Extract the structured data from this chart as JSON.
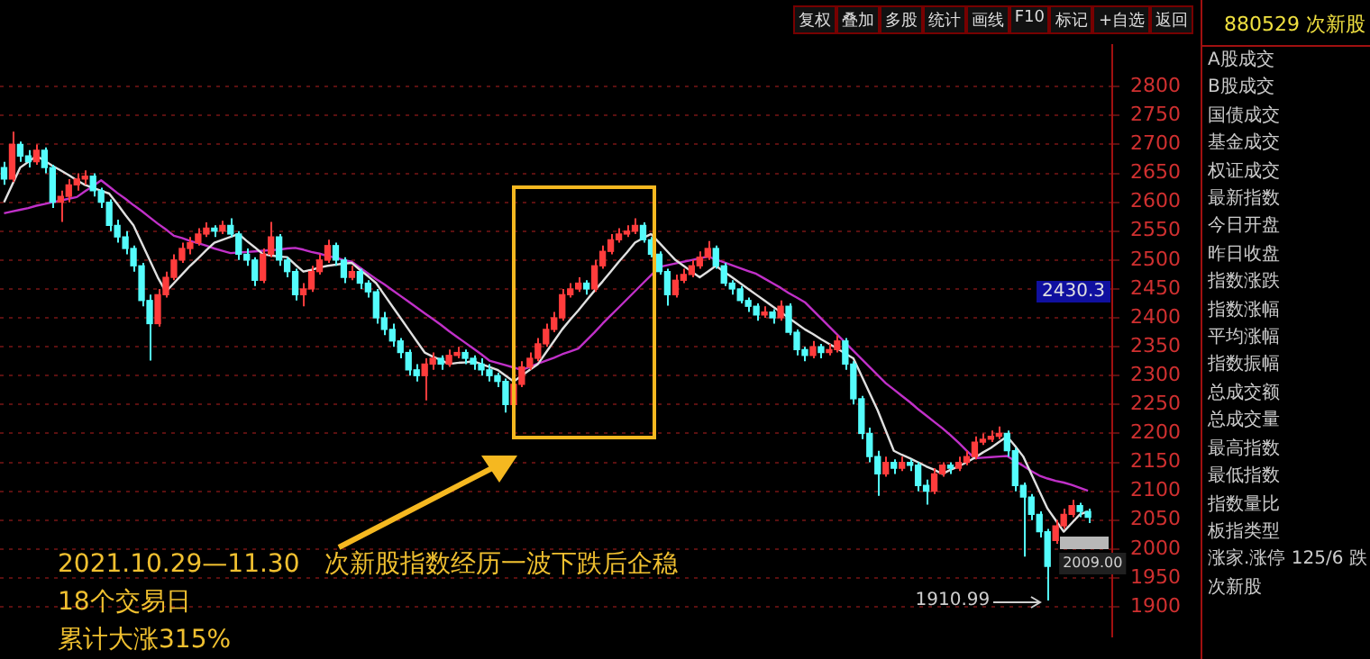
{
  "chart_data": [
    {
      "type": "candlestick",
      "categories": [
        null,
        null,
        null,
        null,
        null,
        null,
        null,
        null,
        null,
        null,
        null,
        null,
        null,
        null,
        null,
        null,
        null,
        null,
        null,
        null,
        null,
        null,
        null,
        null,
        null,
        null,
        null,
        null,
        null,
        null,
        null,
        null,
        null,
        null,
        null,
        null,
        null,
        null,
        null,
        null,
        null,
        null,
        null,
        null,
        null,
        null,
        null,
        null,
        null,
        null,
        null,
        null,
        null,
        null,
        null,
        null,
        null,
        null,
        null,
        null,
        null,
        null,
        null,
        null,
        null,
        null,
        null,
        null,
        null,
        null,
        null,
        null,
        null,
        null,
        null,
        null,
        null,
        null,
        null,
        null,
        null,
        null,
        null,
        null,
        null,
        null,
        null,
        null,
        null,
        null,
        null,
        null,
        null,
        null,
        null,
        null,
        null,
        null,
        null,
        null,
        null,
        null,
        null,
        null,
        null,
        null,
        null,
        null,
        null,
        null,
        null,
        null,
        null,
        null,
        null,
        null,
        null,
        null,
        null,
        null,
        null,
        null,
        null,
        null,
        null,
        null,
        null,
        null,
        null,
        null,
        null,
        null,
        null,
        null,
        null
      ],
      "ylim": [
        1849,
        2872
      ],
      "yticks": [
        1900,
        1950,
        2000,
        2050,
        2100,
        2150,
        2200,
        2250,
        2300,
        2350,
        2400,
        2450,
        2500,
        2550,
        2600,
        2650,
        2700,
        2750,
        2800
      ],
      "grid": "y",
      "tick_labels": "y",
      "marker": "none",
      "annotations": [
        "2021.10.29—11.30　次新股指数经历一波下跌后企稳",
        "18个交易日",
        "累计大涨315%",
        "1910.99",
        "2009.00",
        "2430.3"
      ],
      "series": [
        {
          "type": "candlestick",
          "ohlc": [
            [
              2660,
              2670,
              2630,
              2640
            ],
            [
              2640,
              2722,
              2635,
              2700
            ],
            [
              2700,
              2705,
              2670,
              2680
            ],
            [
              2680,
              2690,
              2660,
              2670
            ],
            [
              2670,
              2700,
              2665,
              2690
            ],
            [
              2690,
              2695,
              2650,
              2660
            ],
            [
              2660,
              2665,
              2590,
              2600
            ],
            [
              2600,
              2620,
              2566,
              2610
            ],
            [
              2610,
              2640,
              2600,
              2630
            ],
            [
              2630,
              2650,
              2620,
              2640
            ],
            [
              2640,
              2655,
              2630,
              2645
            ],
            [
              2645,
              2650,
              2610,
              2620
            ],
            [
              2620,
              2625,
              2590,
              2600
            ],
            [
              2600,
              2605,
              2550,
              2560
            ],
            [
              2560,
              2570,
              2530,
              2540
            ],
            [
              2540,
              2550,
              2510,
              2520
            ],
            [
              2520,
              2525,
              2480,
              2490
            ],
            [
              2490,
              2495,
              2420,
              2430
            ],
            [
              2430,
              2440,
              2326,
              2390
            ],
            [
              2390,
              2450,
              2385,
              2440
            ],
            [
              2440,
              2480,
              2435,
              2470
            ],
            [
              2470,
              2510,
              2465,
              2500
            ],
            [
              2500,
              2530,
              2495,
              2520
            ],
            [
              2520,
              2540,
              2510,
              2530
            ],
            [
              2530,
              2555,
              2525,
              2545
            ],
            [
              2545,
              2565,
              2540,
              2555
            ],
            [
              2555,
              2560,
              2540,
              2550
            ],
            [
              2550,
              2568,
              2545,
              2560
            ],
            [
              2560,
              2572,
              2540,
              2545
            ],
            [
              2545,
              2550,
              2500,
              2510
            ],
            [
              2510,
              2520,
              2490,
              2500
            ],
            [
              2500,
              2505,
              2455,
              2465
            ],
            [
              2465,
              2520,
              2460,
              2510
            ],
            [
              2510,
              2566,
              2505,
              2540
            ],
            [
              2540,
              2545,
              2490,
              2500
            ],
            [
              2500,
              2505,
              2470,
              2480
            ],
            [
              2480,
              2485,
              2430,
              2440
            ],
            [
              2440,
              2460,
              2420,
              2450
            ],
            [
              2450,
              2490,
              2445,
              2480
            ],
            [
              2480,
              2510,
              2475,
              2500
            ],
            [
              2500,
              2535,
              2495,
              2525
            ],
            [
              2525,
              2530,
              2490,
              2500
            ],
            [
              2500,
              2505,
              2460,
              2470
            ],
            [
              2470,
              2490,
              2465,
              2480
            ],
            [
              2480,
              2485,
              2450,
              2460
            ],
            [
              2460,
              2465,
              2435,
              2445
            ],
            [
              2445,
              2450,
              2390,
              2400
            ],
            [
              2400,
              2410,
              2370,
              2380
            ],
            [
              2380,
              2390,
              2350,
              2360
            ],
            [
              2360,
              2365,
              2330,
              2340
            ],
            [
              2340,
              2345,
              2300,
              2310
            ],
            [
              2310,
              2320,
              2290,
              2300
            ],
            [
              2300,
              2330,
              2257,
              2320
            ],
            [
              2320,
              2340,
              2310,
              2330
            ],
            [
              2330,
              2335,
              2310,
              2320
            ],
            [
              2320,
              2345,
              2315,
              2335
            ],
            [
              2335,
              2350,
              2330,
              2340
            ],
            [
              2340,
              2345,
              2320,
              2330
            ],
            [
              2330,
              2335,
              2310,
              2320
            ],
            [
              2320,
              2330,
              2300,
              2310
            ],
            [
              2310,
              2320,
              2290,
              2300
            ],
            [
              2300,
              2305,
              2280,
              2290
            ],
            [
              2290,
              2295,
              2236,
              2250
            ],
            [
              2250,
              2295,
              2245,
              2285
            ],
            [
              2285,
              2325,
              2280,
              2315
            ],
            [
              2315,
              2340,
              2310,
              2330
            ],
            [
              2330,
              2365,
              2325,
              2355
            ],
            [
              2355,
              2390,
              2350,
              2380
            ],
            [
              2380,
              2410,
              2375,
              2400
            ],
            [
              2400,
              2450,
              2395,
              2440
            ],
            [
              2440,
              2460,
              2435,
              2450
            ],
            [
              2450,
              2470,
              2445,
              2460
            ],
            [
              2460,
              2465,
              2440,
              2450
            ],
            [
              2450,
              2500,
              2445,
              2490
            ],
            [
              2490,
              2525,
              2485,
              2515
            ],
            [
              2515,
              2545,
              2510,
              2535
            ],
            [
              2535,
              2555,
              2530,
              2545
            ],
            [
              2545,
              2560,
              2540,
              2550
            ],
            [
              2550,
              2572,
              2545,
              2560
            ],
            [
              2560,
              2565,
              2530,
              2535
            ],
            [
              2535,
              2540,
              2505,
              2510
            ],
            [
              2510,
              2515,
              2475,
              2480
            ],
            [
              2480,
              2485,
              2421,
              2440
            ],
            [
              2440,
              2475,
              2435,
              2465
            ],
            [
              2465,
              2485,
              2460,
              2475
            ],
            [
              2475,
              2500,
              2470,
              2490
            ],
            [
              2490,
              2515,
              2485,
              2505
            ],
            [
              2505,
              2533,
              2500,
              2520
            ],
            [
              2520,
              2525,
              2485,
              2490
            ],
            [
              2490,
              2495,
              2455,
              2460
            ],
            [
              2460,
              2465,
              2440,
              2450
            ],
            [
              2450,
              2455,
              2425,
              2430
            ],
            [
              2430,
              2435,
              2410,
              2420
            ],
            [
              2420,
              2425,
              2395,
              2405
            ],
            [
              2405,
              2420,
              2400,
              2410
            ],
            [
              2410,
              2415,
              2390,
              2400
            ],
            [
              2400,
              2430,
              2395,
              2420
            ],
            [
              2420,
              2425,
              2370,
              2375
            ],
            [
              2375,
              2380,
              2335,
              2345
            ],
            [
              2345,
              2350,
              2325,
              2335
            ],
            [
              2335,
              2360,
              2330,
              2350
            ],
            [
              2350,
              2355,
              2330,
              2340
            ],
            [
              2340,
              2355,
              2335,
              2345
            ],
            [
              2345,
              2370,
              2340,
              2360
            ],
            [
              2360,
              2365,
              2310,
              2320
            ],
            [
              2320,
              2325,
              2250,
              2260
            ],
            [
              2260,
              2265,
              2190,
              2200
            ],
            [
              2200,
              2210,
              2150,
              2160
            ],
            [
              2160,
              2170,
              2092,
              2130
            ],
            [
              2130,
              2160,
              2125,
              2150
            ],
            [
              2150,
              2155,
              2130,
              2140
            ],
            [
              2140,
              2160,
              2135,
              2150
            ],
            [
              2150,
              2155,
              2135,
              2145
            ],
            [
              2145,
              2150,
              2100,
              2110
            ],
            [
              2110,
              2120,
              2077,
              2100
            ],
            [
              2100,
              2140,
              2095,
              2130
            ],
            [
              2130,
              2150,
              2125,
              2145
            ],
            [
              2145,
              2150,
              2130,
              2140
            ],
            [
              2140,
              2160,
              2135,
              2150
            ],
            [
              2150,
              2170,
              2145,
              2160
            ],
            [
              2160,
              2195,
              2155,
              2185
            ],
            [
              2185,
              2200,
              2180,
              2190
            ],
            [
              2190,
              2205,
              2185,
              2195
            ],
            [
              2195,
              2212,
              2190,
              2200
            ],
            [
              2200,
              2205,
              2160,
              2170
            ],
            [
              2170,
              2175,
              2100,
              2110
            ],
            [
              2110,
              2115,
              1987,
              2090
            ],
            [
              2090,
              2095,
              2050,
              2060
            ],
            [
              2060,
              2065,
              2020,
              2030
            ],
            [
              2030,
              2035,
              1910.99,
              1970
            ],
            [
              2015,
              2050,
              2009,
              2040
            ],
            [
              2040,
              2070,
              2035,
              2060
            ],
            [
              2060,
              2085,
              2055,
              2075
            ],
            [
              2075,
              2080,
              2055,
              2065
            ],
            [
              2065,
              2070,
              2045,
              2055
            ]
          ],
          "colors": [
            "#54fcfc",
            "#ff3c3c",
            "#54fcfc",
            "#54fcfc",
            "#ff3c3c",
            "#54fcfc",
            "#54fcfc",
            "#ff3c3c",
            "#ff3c3c",
            "#ff3c3c",
            "#ff3c3c",
            "#54fcfc",
            "#54fcfc",
            "#54fcfc",
            "#54fcfc",
            "#54fcfc",
            "#54fcfc",
            "#54fcfc",
            "#54fcfc",
            "#ff3c3c",
            "#ff3c3c",
            "#ff3c3c",
            "#ff3c3c",
            "#ff3c3c",
            "#ff3c3c",
            "#ff3c3c",
            "#54fcfc",
            "#ff3c3c",
            "#54fcfc",
            "#54fcfc",
            "#54fcfc",
            "#54fcfc",
            "#ff3c3c",
            "#ff3c3c",
            "#54fcfc",
            "#54fcfc",
            "#54fcfc",
            "#ff3c3c",
            "#ff3c3c",
            "#ff3c3c",
            "#ff3c3c",
            "#54fcfc",
            "#54fcfc",
            "#ff3c3c",
            "#54fcfc",
            "#54fcfc",
            "#54fcfc",
            "#54fcfc",
            "#54fcfc",
            "#54fcfc",
            "#54fcfc",
            "#54fcfc",
            "#ff3c3c",
            "#ff3c3c",
            "#54fcfc",
            "#ff3c3c",
            "#ff3c3c",
            "#54fcfc",
            "#54fcfc",
            "#54fcfc",
            "#54fcfc",
            "#54fcfc",
            "#54fcfc",
            "#ff3c3c",
            "#ff3c3c",
            "#ff3c3c",
            "#ff3c3c",
            "#ff3c3c",
            "#ff3c3c",
            "#ff3c3c",
            "#ff3c3c",
            "#ff3c3c",
            "#54fcfc",
            "#ff3c3c",
            "#ff3c3c",
            "#ff3c3c",
            "#ff3c3c",
            "#ff3c3c",
            "#ff3c3c",
            "#54fcfc",
            "#54fcfc",
            "#54fcfc",
            "#54fcfc",
            "#ff3c3c",
            "#ff3c3c",
            "#ff3c3c",
            "#ff3c3c",
            "#ff3c3c",
            "#54fcfc",
            "#54fcfc",
            "#54fcfc",
            "#54fcfc",
            "#54fcfc",
            "#54fcfc",
            "#ff3c3c",
            "#54fcfc",
            "#ff3c3c",
            "#54fcfc",
            "#54fcfc",
            "#54fcfc",
            "#ff3c3c",
            "#54fcfc",
            "#ff3c3c",
            "#ff3c3c",
            "#54fcfc",
            "#54fcfc",
            "#54fcfc",
            "#54fcfc",
            "#54fcfc",
            "#ff3c3c",
            "#54fcfc",
            "#ff3c3c",
            "#54fcfc",
            "#54fcfc",
            "#54fcfc",
            "#ff3c3c",
            "#ff3c3c",
            "#54fcfc",
            "#ff3c3c",
            "#ff3c3c",
            "#ff3c3c",
            "#ff3c3c",
            "#ff3c3c",
            "#ff3c3c",
            "#54fcfc",
            "#54fcfc",
            "#54fcfc",
            "#54fcfc",
            "#54fcfc",
            "#54fcfc",
            "#ff3c3c",
            "#ff3c3c",
            "#ff3c3c",
            "#54fcfc",
            "#54fcfc"
          ]
        },
        {
          "type": "line",
          "color": "#e0e0e0",
          "values": [
            2600,
            2630,
            2660,
            2670,
            2680,
            2672,
            2663,
            2655,
            2647,
            2638,
            2630,
            2625,
            2620,
            2615,
            2597,
            2578,
            2560,
            2530,
            2500,
            2470,
            2445,
            2460,
            2475,
            2490,
            2503,
            2517,
            2530,
            2535,
            2540,
            2545,
            2533,
            2522,
            2510,
            2508,
            2506,
            2505,
            2492,
            2480,
            2483,
            2487,
            2490,
            2492,
            2494,
            2495,
            2483,
            2472,
            2460,
            2440,
            2420,
            2400,
            2380,
            2360,
            2340,
            2333,
            2327,
            2320,
            2322,
            2323,
            2325,
            2320,
            2315,
            2310,
            2300,
            2290,
            2300,
            2310,
            2320,
            2340,
            2360,
            2380,
            2397,
            2413,
            2430,
            2447,
            2463,
            2480,
            2497,
            2513,
            2530,
            2538,
            2545,
            2530,
            2515,
            2500,
            2490,
            2480,
            2470,
            2480,
            2490,
            2480,
            2470,
            2460,
            2450,
            2440,
            2430,
            2420,
            2410,
            2400,
            2390,
            2380,
            2372,
            2363,
            2355,
            2347,
            2338,
            2330,
            2300,
            2270,
            2240,
            2205,
            2170,
            2163,
            2157,
            2150,
            2143,
            2137,
            2130,
            2137,
            2143,
            2150,
            2158,
            2167,
            2175,
            2185,
            2195,
            2178,
            2160,
            2130,
            2100,
            2070,
            2050,
            2030,
            2045,
            2060,
            2065
          ]
        },
        {
          "type": "line",
          "color": "#c030c8",
          "values": [
            2581,
            2584,
            2587,
            2590,
            2594,
            2597,
            2600,
            2603,
            2606,
            2609,
            2619,
            2628,
            2638,
            2627,
            2616,
            2606,
            2595,
            2585,
            2574,
            2563,
            2553,
            2542,
            2538,
            2533,
            2529,
            2525,
            2520,
            2516,
            2512,
            2513,
            2514,
            2515,
            2516,
            2517,
            2518,
            2520,
            2521,
            2518,
            2514,
            2511,
            2507,
            2504,
            2500,
            2497,
            2487,
            2477,
            2467,
            2458,
            2448,
            2438,
            2428,
            2418,
            2408,
            2398,
            2388,
            2377,
            2367,
            2357,
            2347,
            2337,
            2326,
            2322,
            2318,
            2314,
            2310,
            2315,
            2321,
            2326,
            2331,
            2337,
            2342,
            2347,
            2361,
            2375,
            2390,
            2404,
            2418,
            2432,
            2446,
            2460,
            2474,
            2488,
            2491,
            2494,
            2497,
            2500,
            2503,
            2506,
            2501,
            2496,
            2491,
            2486,
            2481,
            2476,
            2468,
            2460,
            2452,
            2443,
            2435,
            2427,
            2413,
            2399,
            2385,
            2371,
            2357,
            2343,
            2329,
            2315,
            2301,
            2287,
            2276,
            2265,
            2254,
            2242,
            2231,
            2220,
            2209,
            2197,
            2184,
            2170,
            2157,
            2158,
            2159,
            2160,
            2161,
            2152,
            2144,
            2135,
            2127,
            2122,
            2118,
            2115,
            2111,
            2106,
            2101
          ]
        }
      ]
    },
    {
      "type": "other",
      "annotations": [
        "复权",
        "叠加",
        "多股",
        "统计",
        "画线",
        "F10",
        "标记",
        "+自选",
        "返回"
      ]
    },
    {
      "type": "other",
      "title": "880529 次新股",
      "annotations": [
        "A股成交",
        "B股成交",
        "国债成交",
        "基金成交",
        "权证成交",
        "最新指数",
        "今日开盘",
        "昨日收盘",
        "指数涨跌",
        "指数涨幅",
        "平均涨幅",
        "指数振幅",
        "总成交额",
        "总成交量",
        "最高指数",
        "最低指数",
        "指数量比",
        "板指类型",
        "涨家.涨停 125/6 跌",
        "次新股"
      ]
    }
  ]
}
